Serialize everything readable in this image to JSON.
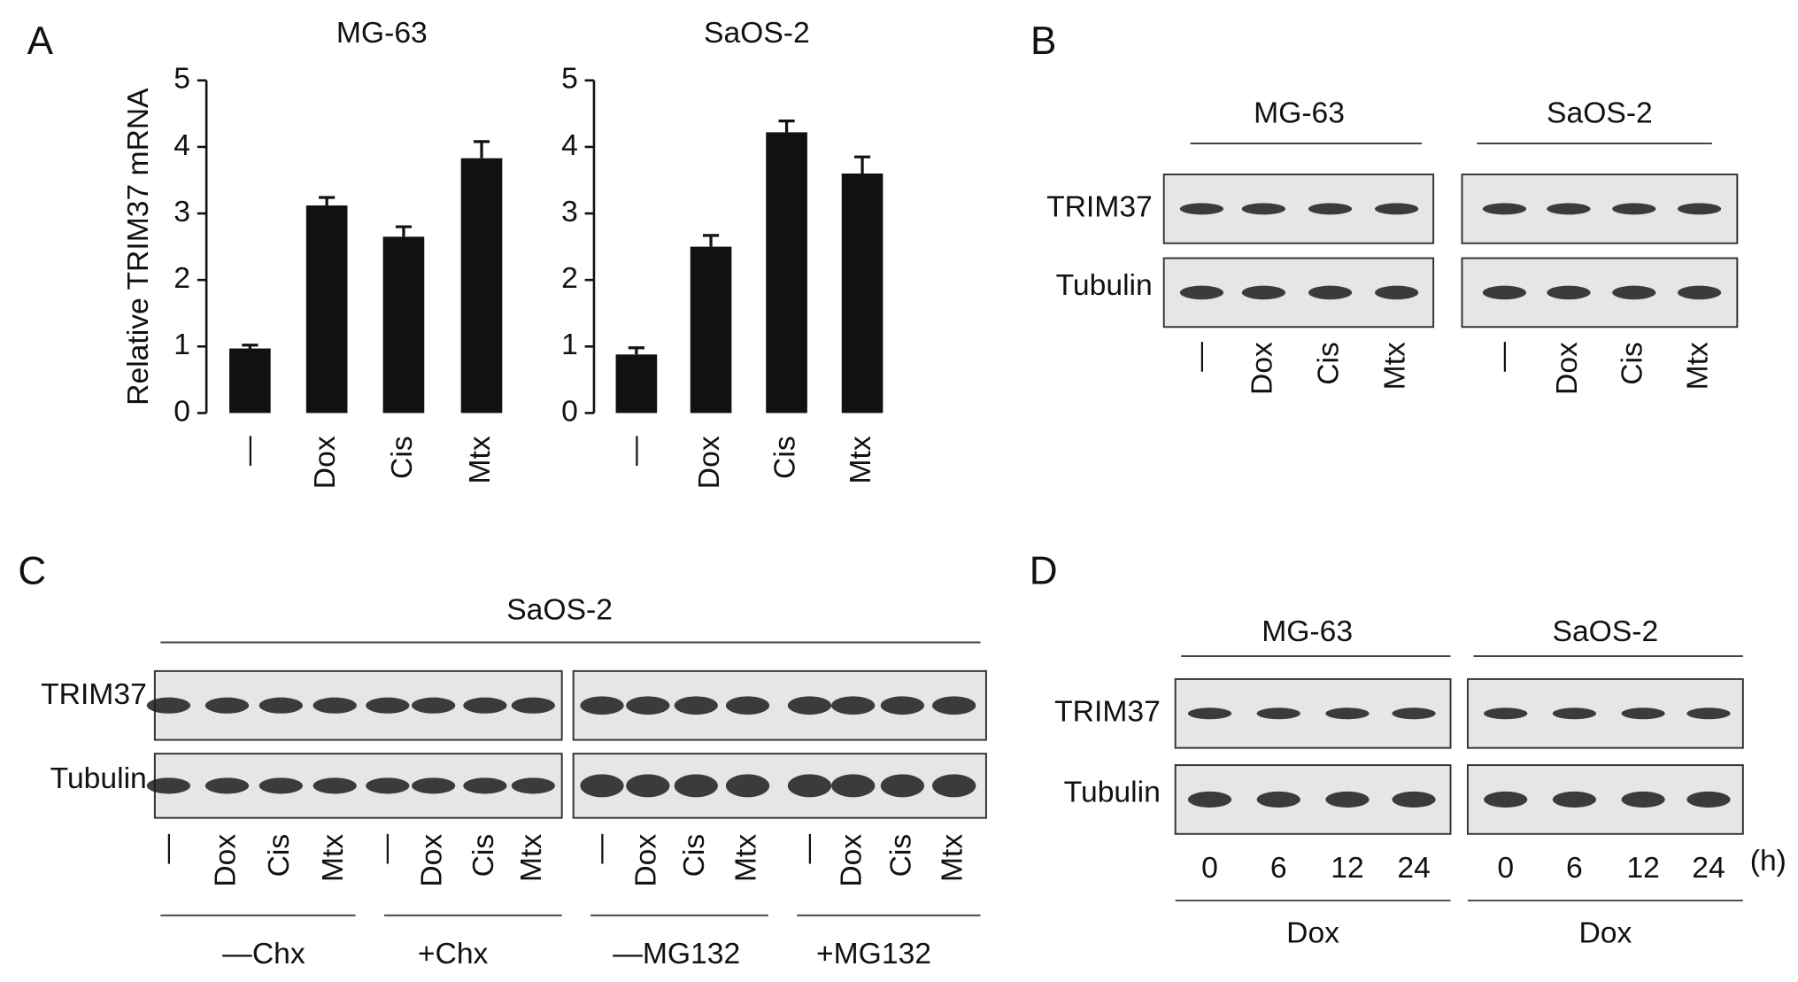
{
  "panel_labels": [
    "A",
    "B",
    "C",
    "D"
  ],
  "chart_data": [
    {
      "type": "bar",
      "title": "MG-63",
      "ylabel": "Relative TRIM37 mRNA",
      "categories": [
        "—",
        "Dox",
        "Cis",
        "Mtx"
      ],
      "values": [
        0.97,
        3.12,
        2.65,
        3.83
      ],
      "errors": [
        0.05,
        0.12,
        0.15,
        0.25
      ],
      "color": "#111111",
      "ylim": [
        0,
        5
      ],
      "yticks": [
        0,
        1,
        2,
        3,
        4,
        5
      ]
    },
    {
      "type": "bar",
      "title": "SaOS-2",
      "categories": [
        "—",
        "Dox",
        "Cis",
        "Mtx"
      ],
      "values": [
        0.88,
        2.5,
        4.22,
        3.6
      ],
      "errors": [
        0.1,
        0.17,
        0.17,
        0.25
      ],
      "color": "#111111",
      "ylim": [
        0,
        5
      ],
      "yticks": [
        0,
        1,
        2,
        3,
        4,
        5
      ]
    }
  ],
  "panel_b": {
    "rows": [
      "TRIM37",
      "Tubulin"
    ],
    "groups": [
      {
        "title": "MG-63",
        "lanes": [
          "—",
          "Dox",
          "Cis",
          "Mtx"
        ]
      },
      {
        "title": "SaOS-2",
        "lanes": [
          "—",
          "Dox",
          "Cis",
          "Mtx"
        ]
      }
    ]
  },
  "panel_c": {
    "title": "SaOS-2",
    "rows": [
      "TRIM37",
      "Tubulin"
    ],
    "lanes": [
      "—",
      "Dox",
      "Cis",
      "Mtx",
      "—",
      "Dox",
      "Cis",
      "Mtx",
      "—",
      "Dox",
      "Cis",
      "Mtx",
      "—",
      "Dox",
      "Cis",
      "Mtx"
    ],
    "groups": [
      "—Chx",
      "+Chx",
      "—MG132",
      "+MG132"
    ]
  },
  "panel_d": {
    "rows": [
      "TRIM37",
      "Tubulin"
    ],
    "unit": "(h)",
    "groups": [
      {
        "title": "MG-63",
        "times": [
          0,
          6,
          12,
          24
        ],
        "treatment": "Dox"
      },
      {
        "title": "SaOS-2",
        "times": [
          0,
          6,
          12,
          24
        ],
        "treatment": "Dox"
      }
    ]
  }
}
